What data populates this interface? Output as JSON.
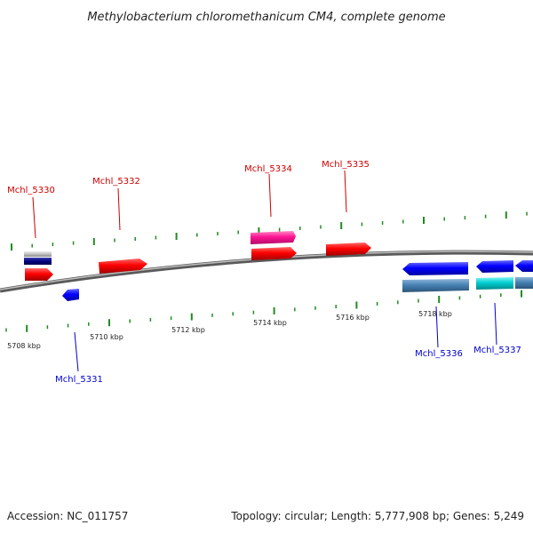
{
  "title": "Methylobacterium chloromethanicum CM4, complete genome",
  "footer": {
    "accession": "Accession: NC_011757",
    "summary": "Topology: circular; Length: 5,777,908 bp; Genes: 5,249"
  },
  "scale_labels": [
    "5708 kbp",
    "5710 kbp",
    "5712 kbp",
    "5714 kbp",
    "5716 kbp",
    "5718 kbp"
  ],
  "gene_labels": [
    {
      "id": "g5330",
      "label": "Mchl_5330",
      "strand": "fwd"
    },
    {
      "id": "g5331",
      "label": "Mchl_5331",
      "strand": "rev"
    },
    {
      "id": "g5332",
      "label": "Mchl_5332",
      "strand": "fwd"
    },
    {
      "id": "g5334",
      "label": "Mchl_5334",
      "strand": "fwd"
    },
    {
      "id": "g5335",
      "label": "Mchl_5335",
      "strand": "fwd"
    },
    {
      "id": "g5336",
      "label": "Mchl_5336",
      "strand": "rev"
    },
    {
      "id": "g5337",
      "label": "Mchl_5337",
      "strand": "rev"
    }
  ],
  "colors": {
    "forward_cds": "#ff0000",
    "reverse_cds": "#0000ff",
    "forward_rna": "#ff1493",
    "reverse_rna": "#00ced1",
    "gene_bar": "#4682b4",
    "pseudo": "#c0c0c0",
    "navy": "#000080",
    "tick": "#228b22",
    "backbone": "#808080"
  }
}
